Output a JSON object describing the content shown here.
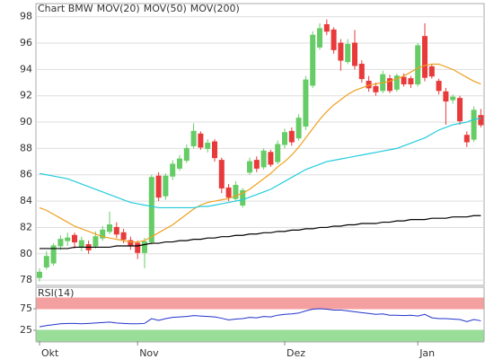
{
  "chart_data": [
    {
      "type": "candlestick",
      "series": [
        {
          "name": "Chart BMW",
          "color": "#d9534f",
          "up_color": "#66cc66",
          "down_color": "#e83a3a",
          "open": [
            78.2,
            79.0,
            79.3,
            80.6,
            81.0,
            81.4,
            80.5,
            80.7,
            80.6,
            81.2,
            81.7,
            82.0,
            81.6,
            81.0,
            80.8,
            80.1,
            80.9,
            85.9,
            84.4,
            85.9,
            86.5,
            87.1,
            88.2,
            89.1,
            88.0,
            88.5,
            87.1,
            85.0,
            84.2,
            83.7,
            86.2,
            87.1,
            86.6,
            87.7,
            87.0,
            88.3,
            89.3,
            88.8,
            89.7,
            92.8,
            95.7,
            97.4,
            97.0,
            96.0,
            94.6,
            96.0,
            94.4,
            93.1,
            92.7,
            92.4,
            93.3,
            92.5,
            93.4,
            93.3,
            92.9,
            96.5,
            94.2,
            93.1,
            92.3,
            91.7,
            91.8,
            89.0,
            88.7,
            90.5
          ],
          "high": [
            78.9,
            80.2,
            80.8,
            81.4,
            81.6,
            81.6,
            81.3,
            81.0,
            81.7,
            82.1,
            83.2,
            82.4,
            81.9,
            81.3,
            81.0,
            81.2,
            86.0,
            86.2,
            86.1,
            87.1,
            87.5,
            88.3,
            89.9,
            89.3,
            88.7,
            88.7,
            87.3,
            85.3,
            85.5,
            85.0,
            87.3,
            87.4,
            88.0,
            87.9,
            88.6,
            89.5,
            89.6,
            90.6,
            93.5,
            96.9,
            97.5,
            97.8,
            97.2,
            96.3,
            96.3,
            97.0,
            94.7,
            93.5,
            93.0,
            93.9,
            93.6,
            93.7,
            93.7,
            93.5,
            96.0,
            97.5,
            94.4,
            93.3,
            92.6,
            92.1,
            92.0,
            89.3,
            91.2,
            91.0
          ],
          "low": [
            77.9,
            78.8,
            79.1,
            80.3,
            80.6,
            80.4,
            80.2,
            80.0,
            80.4,
            81.0,
            81.5,
            81.2,
            80.8,
            80.3,
            79.6,
            78.9,
            80.7,
            84.0,
            84.1,
            85.6,
            86.3,
            86.9,
            88.0,
            87.9,
            87.7,
            87.0,
            84.6,
            84.0,
            84.0,
            83.5,
            86.0,
            86.2,
            86.4,
            86.6,
            86.8,
            88.0,
            88.2,
            88.6,
            89.4,
            92.6,
            95.5,
            96.6,
            95.2,
            93.9,
            94.4,
            94.0,
            93.0,
            92.3,
            92.0,
            92.2,
            92.2,
            92.3,
            92.7,
            92.6,
            92.7,
            93.1,
            93.3,
            92.1,
            89.8,
            91.4,
            89.8,
            88.1,
            88.5,
            89.6
          ],
          "close": [
            78.6,
            79.8,
            80.6,
            81.1,
            81.2,
            80.9,
            81.0,
            80.3,
            81.3,
            81.8,
            82.2,
            81.5,
            81.1,
            80.6,
            80.1,
            80.9,
            85.8,
            84.3,
            85.9,
            86.8,
            87.2,
            88.0,
            89.3,
            88.1,
            88.4,
            87.3,
            85.0,
            84.3,
            85.2,
            84.8,
            87.0,
            86.5,
            87.8,
            86.8,
            88.3,
            89.2,
            88.5,
            90.3,
            93.2,
            96.6,
            97.1,
            96.9,
            95.5,
            94.7,
            95.9,
            94.3,
            93.3,
            92.6,
            92.3,
            93.6,
            92.4,
            93.5,
            92.9,
            92.9,
            95.8,
            93.4,
            93.5,
            92.4,
            91.6,
            91.9,
            90.1,
            88.5,
            90.9,
            89.8
          ]
        },
        {
          "name": "MOV(20)",
          "color": "#f0a020",
          "values": [
            83.5,
            83.3,
            83.0,
            82.7,
            82.4,
            82.1,
            81.9,
            81.7,
            81.5,
            81.3,
            81.2,
            81.1,
            81.0,
            80.9,
            80.9,
            81.0,
            81.3,
            81.6,
            81.9,
            82.2,
            82.6,
            83.0,
            83.4,
            83.7,
            83.9,
            84.0,
            84.1,
            84.2,
            84.4,
            84.6,
            84.9,
            85.3,
            85.7,
            86.1,
            86.6,
            87.0,
            87.5,
            88.1,
            88.8,
            89.5,
            90.2,
            90.8,
            91.3,
            91.7,
            92.1,
            92.4,
            92.6,
            92.8,
            92.9,
            93.0,
            93.1,
            93.3,
            93.5,
            93.8,
            94.1,
            94.3,
            94.4,
            94.4,
            94.2,
            94.0,
            93.7,
            93.4,
            93.1,
            92.9
          ]
        },
        {
          "name": "MOV(50)",
          "color": "#22ccdd",
          "values": [
            86.1,
            86.0,
            85.9,
            85.8,
            85.7,
            85.5,
            85.3,
            85.1,
            84.9,
            84.7,
            84.5,
            84.3,
            84.1,
            83.9,
            83.8,
            83.7,
            83.6,
            83.5,
            83.5,
            83.5,
            83.5,
            83.5,
            83.5,
            83.6,
            83.6,
            83.7,
            83.8,
            83.9,
            84.0,
            84.1,
            84.3,
            84.5,
            84.7,
            84.9,
            85.2,
            85.5,
            85.8,
            86.1,
            86.4,
            86.6,
            86.8,
            87.0,
            87.1,
            87.2,
            87.3,
            87.4,
            87.5,
            87.6,
            87.7,
            87.8,
            87.9,
            88.0,
            88.2,
            88.4,
            88.6,
            88.8,
            89.1,
            89.4,
            89.6,
            89.8,
            89.9,
            90.0,
            90.2,
            90.3
          ]
        },
        {
          "name": "MOV(200)",
          "color": "#000000",
          "values": [
            80.4,
            80.4,
            80.4,
            80.4,
            80.4,
            80.5,
            80.5,
            80.5,
            80.5,
            80.5,
            80.5,
            80.6,
            80.6,
            80.6,
            80.6,
            80.7,
            80.8,
            80.8,
            80.9,
            80.9,
            81.0,
            81.0,
            81.1,
            81.1,
            81.2,
            81.2,
            81.3,
            81.3,
            81.4,
            81.4,
            81.5,
            81.5,
            81.6,
            81.6,
            81.7,
            81.7,
            81.8,
            81.8,
            81.9,
            81.9,
            82.0,
            82.0,
            82.1,
            82.1,
            82.2,
            82.2,
            82.3,
            82.3,
            82.3,
            82.4,
            82.4,
            82.5,
            82.5,
            82.6,
            82.6,
            82.6,
            82.7,
            82.7,
            82.7,
            82.8,
            82.8,
            82.8,
            82.9,
            82.9
          ]
        }
      ],
      "ylim": [
        77.6,
        99.0
      ],
      "yticks": [
        78,
        80,
        82,
        84,
        86,
        88,
        90,
        92,
        94,
        96,
        98
      ],
      "grid": true
    },
    {
      "type": "line",
      "title": "RSI(14)",
      "categories": [
        "Okt",
        null,
        null,
        null,
        null,
        null,
        null,
        null,
        null,
        null,
        null,
        null,
        null,
        null,
        "Nov",
        null,
        null,
        null,
        null,
        null,
        null,
        null,
        null,
        null,
        null,
        null,
        null,
        null,
        null,
        null,
        null,
        null,
        null,
        null,
        null,
        "Dez",
        null,
        null,
        null,
        null,
        null,
        null,
        null,
        null,
        null,
        null,
        null,
        null,
        null,
        null,
        null,
        null,
        null,
        null,
        "Jan",
        null,
        null,
        null,
        null,
        null,
        null,
        null,
        null,
        null
      ],
      "series": [
        {
          "color": "#2233cc",
          "values": [
            33,
            36,
            38,
            40,
            41,
            41,
            40,
            41,
            42,
            43,
            44,
            42,
            41,
            40,
            40,
            41,
            52,
            48,
            52,
            55,
            56,
            57,
            59,
            58,
            57,
            56,
            53,
            49,
            51,
            52,
            55,
            54,
            57,
            56,
            60,
            62,
            63,
            65,
            70,
            74,
            75,
            74,
            72,
            72,
            70,
            68,
            66,
            64,
            62,
            63,
            60,
            60,
            59,
            60,
            58,
            62,
            54,
            52,
            52,
            51,
            50,
            45,
            50,
            47
          ]
        }
      ],
      "bands": [
        {
          "from": 75,
          "to": 100,
          "color": "#f4a0a0"
        },
        {
          "from": 0,
          "to": 25,
          "color": "#99dd99"
        }
      ],
      "ylim": [
        0,
        125
      ],
      "yticks": [
        25,
        75
      ]
    }
  ]
}
